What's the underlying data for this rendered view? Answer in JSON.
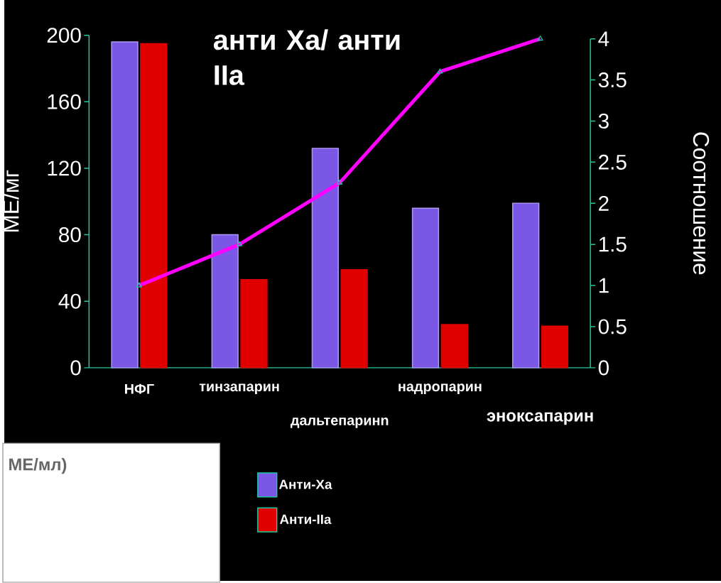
{
  "chart_data": {
    "type": "bar",
    "title": "анти Ха/ анти IIa",
    "ylabel": "МЕ/мг",
    "y2label": "Соотношение",
    "categories": [
      "НФГ",
      "тинзапарин",
      "дальтепаринn",
      "надропарин",
      "эноксапарин"
    ],
    "series": [
      {
        "name": "Анти-Ха",
        "color": "#7b57e6",
        "values": [
          196,
          80,
          132,
          96,
          99
        ]
      },
      {
        "name": "Анти-IIa",
        "color": "#e00000",
        "values": [
          195,
          53,
          59,
          26,
          25
        ]
      },
      {
        "type": "line",
        "axis": "y2",
        "color": "#ff00ff",
        "marker": "triangle",
        "values": [
          1,
          1.5,
          2.25,
          3.6,
          4
        ]
      }
    ],
    "ylim": [
      0,
      200
    ],
    "yticks": [
      0,
      40,
      80,
      120,
      160,
      200
    ],
    "y2lim": [
      0,
      4
    ],
    "y2ticks": [
      0,
      0.5,
      1,
      1.5,
      2,
      2.5,
      3,
      3.5,
      4
    ],
    "legend": "bottom",
    "annotations": [
      "МЕ/мл)"
    ]
  }
}
